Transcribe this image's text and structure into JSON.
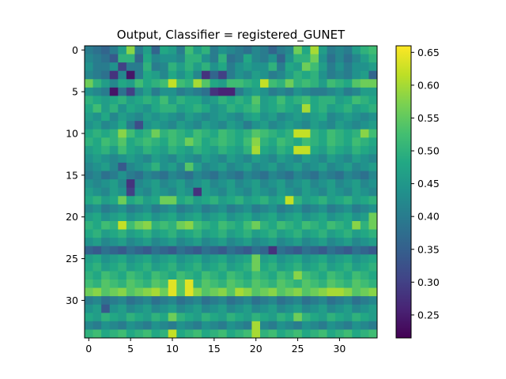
{
  "chart_data": {
    "type": "heatmap",
    "title": "Output, Classifier = registered_GUNET",
    "rows": 35,
    "cols": 35,
    "x_ticks": [
      0,
      5,
      10,
      15,
      20,
      25,
      30
    ],
    "y_ticks": [
      0,
      5,
      10,
      15,
      20,
      25,
      30
    ],
    "colorbar": {
      "colormap": "viridis",
      "vmin": 0.215,
      "vmax": 0.66,
      "ticks": [
        0.25,
        0.3,
        0.35,
        0.4,
        0.45,
        0.5,
        0.55,
        0.6,
        0.65
      ],
      "tick_labels": [
        "0.25",
        "0.30",
        "0.35",
        "0.40",
        "0.45",
        "0.50",
        "0.55",
        "0.60",
        "0.65"
      ]
    },
    "values": [
      [
        0.4,
        0.38,
        0.36,
        0.4,
        0.46,
        0.58,
        0.4,
        0.46,
        0.36,
        0.48,
        0.46,
        0.4,
        0.52,
        0.46,
        0.5,
        0.4,
        0.44,
        0.42,
        0.4,
        0.38,
        0.42,
        0.4,
        0.36,
        0.4,
        0.42,
        0.56,
        0.48,
        0.6,
        0.46,
        0.4,
        0.42,
        0.4,
        0.46,
        0.5,
        0.52
      ],
      [
        0.42,
        0.4,
        0.38,
        0.34,
        0.5,
        0.5,
        0.36,
        0.48,
        0.42,
        0.44,
        0.44,
        0.42,
        0.5,
        0.5,
        0.44,
        0.4,
        0.5,
        0.38,
        0.4,
        0.48,
        0.42,
        0.4,
        0.44,
        0.36,
        0.44,
        0.5,
        0.5,
        0.56,
        0.44,
        0.38,
        0.42,
        0.38,
        0.42,
        0.46,
        0.5
      ],
      [
        0.44,
        0.4,
        0.4,
        0.44,
        0.3,
        0.4,
        0.4,
        0.5,
        0.4,
        0.42,
        0.5,
        0.46,
        0.5,
        0.46,
        0.5,
        0.44,
        0.48,
        0.4,
        0.44,
        0.46,
        0.44,
        0.44,
        0.5,
        0.4,
        0.48,
        0.46,
        0.56,
        0.52,
        0.46,
        0.4,
        0.44,
        0.4,
        0.44,
        0.44,
        0.46
      ],
      [
        0.42,
        0.4,
        0.38,
        0.28,
        0.42,
        0.24,
        0.4,
        0.48,
        0.46,
        0.42,
        0.48,
        0.44,
        0.48,
        0.42,
        0.28,
        0.36,
        0.3,
        0.4,
        0.44,
        0.42,
        0.46,
        0.44,
        0.4,
        0.42,
        0.46,
        0.5,
        0.48,
        0.5,
        0.44,
        0.4,
        0.42,
        0.4,
        0.44,
        0.46,
        0.36
      ],
      [
        0.56,
        0.5,
        0.46,
        0.42,
        0.48,
        0.46,
        0.52,
        0.48,
        0.5,
        0.52,
        0.62,
        0.52,
        0.5,
        0.6,
        0.54,
        0.48,
        0.46,
        0.52,
        0.52,
        0.5,
        0.48,
        0.62,
        0.52,
        0.5,
        0.56,
        0.5,
        0.52,
        0.5,
        0.46,
        0.52,
        0.5,
        0.48,
        0.54,
        0.56,
        0.56
      ],
      [
        0.44,
        0.42,
        0.4,
        0.24,
        0.38,
        0.3,
        0.42,
        0.46,
        0.4,
        0.44,
        0.44,
        0.4,
        0.42,
        0.4,
        0.38,
        0.28,
        0.26,
        0.26,
        0.4,
        0.44,
        0.46,
        0.44,
        0.4,
        0.42,
        0.4,
        0.44,
        0.42,
        0.4,
        0.4,
        0.42,
        0.44,
        0.4,
        0.42,
        0.46,
        0.46
      ],
      [
        0.5,
        0.48,
        0.46,
        0.48,
        0.5,
        0.46,
        0.48,
        0.5,
        0.48,
        0.52,
        0.46,
        0.5,
        0.48,
        0.48,
        0.44,
        0.46,
        0.5,
        0.48,
        0.5,
        0.48,
        0.54,
        0.46,
        0.48,
        0.52,
        0.48,
        0.5,
        0.52,
        0.48,
        0.5,
        0.5,
        0.46,
        0.48,
        0.52,
        0.5,
        0.48
      ],
      [
        0.48,
        0.52,
        0.46,
        0.5,
        0.44,
        0.48,
        0.46,
        0.44,
        0.48,
        0.5,
        0.5,
        0.46,
        0.48,
        0.5,
        0.48,
        0.44,
        0.46,
        0.5,
        0.48,
        0.5,
        0.52,
        0.46,
        0.48,
        0.5,
        0.48,
        0.46,
        0.6,
        0.48,
        0.5,
        0.46,
        0.48,
        0.5,
        0.46,
        0.48,
        0.5
      ],
      [
        0.46,
        0.44,
        0.48,
        0.42,
        0.46,
        0.44,
        0.42,
        0.46,
        0.44,
        0.46,
        0.44,
        0.42,
        0.46,
        0.44,
        0.42,
        0.44,
        0.46,
        0.44,
        0.42,
        0.46,
        0.48,
        0.44,
        0.46,
        0.42,
        0.44,
        0.46,
        0.44,
        0.46,
        0.48,
        0.42,
        0.44,
        0.46,
        0.44,
        0.42,
        0.44
      ],
      [
        0.44,
        0.46,
        0.42,
        0.44,
        0.48,
        0.4,
        0.32,
        0.44,
        0.46,
        0.44,
        0.42,
        0.46,
        0.44,
        0.42,
        0.46,
        0.44,
        0.42,
        0.46,
        0.44,
        0.4,
        0.44,
        0.46,
        0.42,
        0.44,
        0.46,
        0.44,
        0.42,
        0.46,
        0.44,
        0.42,
        0.46,
        0.44,
        0.42,
        0.44,
        0.46
      ],
      [
        0.48,
        0.5,
        0.48,
        0.5,
        0.58,
        0.52,
        0.48,
        0.5,
        0.56,
        0.5,
        0.52,
        0.5,
        0.48,
        0.52,
        0.5,
        0.48,
        0.52,
        0.5,
        0.48,
        0.5,
        0.54,
        0.52,
        0.5,
        0.48,
        0.5,
        0.62,
        0.62,
        0.5,
        0.48,
        0.52,
        0.5,
        0.48,
        0.5,
        0.58,
        0.52
      ],
      [
        0.5,
        0.48,
        0.52,
        0.5,
        0.54,
        0.48,
        0.5,
        0.52,
        0.5,
        0.48,
        0.52,
        0.5,
        0.56,
        0.52,
        0.48,
        0.5,
        0.52,
        0.5,
        0.48,
        0.52,
        0.58,
        0.5,
        0.48,
        0.52,
        0.5,
        0.48,
        0.52,
        0.5,
        0.48,
        0.52,
        0.5,
        0.48,
        0.52,
        0.5,
        0.48
      ],
      [
        0.46,
        0.48,
        0.5,
        0.46,
        0.52,
        0.48,
        0.46,
        0.5,
        0.48,
        0.46,
        0.5,
        0.48,
        0.46,
        0.5,
        0.48,
        0.46,
        0.5,
        0.48,
        0.46,
        0.5,
        0.6,
        0.48,
        0.46,
        0.5,
        0.48,
        0.62,
        0.62,
        0.48,
        0.46,
        0.5,
        0.48,
        0.46,
        0.5,
        0.48,
        0.46
      ],
      [
        0.44,
        0.46,
        0.44,
        0.42,
        0.44,
        0.46,
        0.44,
        0.42,
        0.46,
        0.44,
        0.42,
        0.46,
        0.44,
        0.42,
        0.46,
        0.44,
        0.42,
        0.46,
        0.44,
        0.42,
        0.46,
        0.44,
        0.42,
        0.46,
        0.44,
        0.42,
        0.46,
        0.44,
        0.42,
        0.46,
        0.44,
        0.42,
        0.46,
        0.44,
        0.42
      ],
      [
        0.42,
        0.44,
        0.46,
        0.42,
        0.34,
        0.42,
        0.44,
        0.46,
        0.5,
        0.44,
        0.46,
        0.42,
        0.54,
        0.46,
        0.42,
        0.44,
        0.46,
        0.42,
        0.44,
        0.46,
        0.42,
        0.44,
        0.46,
        0.42,
        0.44,
        0.46,
        0.42,
        0.44,
        0.46,
        0.42,
        0.44,
        0.46,
        0.42,
        0.44,
        0.46
      ],
      [
        0.4,
        0.42,
        0.38,
        0.4,
        0.44,
        0.4,
        0.38,
        0.42,
        0.4,
        0.38,
        0.42,
        0.4,
        0.38,
        0.42,
        0.4,
        0.38,
        0.42,
        0.4,
        0.38,
        0.42,
        0.4,
        0.38,
        0.42,
        0.4,
        0.38,
        0.42,
        0.4,
        0.38,
        0.42,
        0.4,
        0.38,
        0.42,
        0.4,
        0.38,
        0.42
      ],
      [
        0.44,
        0.42,
        0.44,
        0.46,
        0.42,
        0.28,
        0.42,
        0.44,
        0.46,
        0.42,
        0.44,
        0.46,
        0.42,
        0.44,
        0.46,
        0.42,
        0.44,
        0.46,
        0.42,
        0.44,
        0.46,
        0.42,
        0.44,
        0.46,
        0.42,
        0.44,
        0.46,
        0.42,
        0.44,
        0.46,
        0.42,
        0.44,
        0.46,
        0.42,
        0.44
      ],
      [
        0.46,
        0.44,
        0.42,
        0.46,
        0.44,
        0.3,
        0.44,
        0.42,
        0.46,
        0.44,
        0.42,
        0.46,
        0.44,
        0.28,
        0.46,
        0.44,
        0.42,
        0.46,
        0.44,
        0.42,
        0.46,
        0.44,
        0.42,
        0.46,
        0.44,
        0.42,
        0.46,
        0.44,
        0.42,
        0.46,
        0.44,
        0.42,
        0.46,
        0.44,
        0.42
      ],
      [
        0.48,
        0.5,
        0.46,
        0.48,
        0.56,
        0.48,
        0.5,
        0.46,
        0.48,
        0.56,
        0.56,
        0.48,
        0.5,
        0.46,
        0.48,
        0.5,
        0.46,
        0.48,
        0.5,
        0.46,
        0.48,
        0.5,
        0.46,
        0.48,
        0.62,
        0.5,
        0.46,
        0.48,
        0.5,
        0.46,
        0.48,
        0.5,
        0.46,
        0.48,
        0.5
      ],
      [
        0.42,
        0.44,
        0.4,
        0.42,
        0.44,
        0.4,
        0.42,
        0.44,
        0.4,
        0.42,
        0.44,
        0.4,
        0.42,
        0.44,
        0.4,
        0.42,
        0.44,
        0.4,
        0.42,
        0.44,
        0.4,
        0.42,
        0.44,
        0.4,
        0.42,
        0.44,
        0.4,
        0.42,
        0.44,
        0.4,
        0.42,
        0.44,
        0.4,
        0.42,
        0.44
      ],
      [
        0.46,
        0.48,
        0.44,
        0.46,
        0.48,
        0.44,
        0.46,
        0.48,
        0.44,
        0.46,
        0.48,
        0.44,
        0.46,
        0.48,
        0.44,
        0.46,
        0.48,
        0.44,
        0.46,
        0.48,
        0.44,
        0.46,
        0.48,
        0.44,
        0.46,
        0.48,
        0.44,
        0.46,
        0.48,
        0.44,
        0.46,
        0.48,
        0.44,
        0.46,
        0.56
      ],
      [
        0.5,
        0.48,
        0.52,
        0.5,
        0.62,
        0.52,
        0.56,
        0.58,
        0.5,
        0.52,
        0.5,
        0.56,
        0.58,
        0.52,
        0.5,
        0.48,
        0.52,
        0.5,
        0.48,
        0.52,
        0.56,
        0.5,
        0.48,
        0.52,
        0.5,
        0.48,
        0.52,
        0.5,
        0.48,
        0.52,
        0.5,
        0.48,
        0.58,
        0.5,
        0.56
      ],
      [
        0.48,
        0.5,
        0.46,
        0.48,
        0.5,
        0.46,
        0.48,
        0.5,
        0.46,
        0.48,
        0.5,
        0.46,
        0.48,
        0.5,
        0.46,
        0.48,
        0.5,
        0.46,
        0.48,
        0.5,
        0.46,
        0.48,
        0.5,
        0.46,
        0.48,
        0.5,
        0.46,
        0.48,
        0.5,
        0.46,
        0.48,
        0.5,
        0.46,
        0.48,
        0.5
      ],
      [
        0.44,
        0.46,
        0.42,
        0.44,
        0.46,
        0.42,
        0.44,
        0.46,
        0.42,
        0.44,
        0.46,
        0.42,
        0.44,
        0.46,
        0.42,
        0.44,
        0.46,
        0.42,
        0.44,
        0.46,
        0.42,
        0.44,
        0.46,
        0.42,
        0.44,
        0.46,
        0.42,
        0.44,
        0.46,
        0.42,
        0.44,
        0.46,
        0.42,
        0.44,
        0.46
      ],
      [
        0.36,
        0.34,
        0.38,
        0.36,
        0.34,
        0.38,
        0.36,
        0.34,
        0.38,
        0.36,
        0.34,
        0.38,
        0.36,
        0.34,
        0.38,
        0.36,
        0.34,
        0.38,
        0.36,
        0.34,
        0.38,
        0.36,
        0.28,
        0.38,
        0.36,
        0.34,
        0.38,
        0.36,
        0.34,
        0.38,
        0.36,
        0.34,
        0.38,
        0.36,
        0.34
      ],
      [
        0.46,
        0.48,
        0.44,
        0.46,
        0.48,
        0.44,
        0.46,
        0.48,
        0.44,
        0.46,
        0.48,
        0.44,
        0.46,
        0.48,
        0.44,
        0.46,
        0.48,
        0.44,
        0.46,
        0.48,
        0.56,
        0.46,
        0.48,
        0.44,
        0.46,
        0.48,
        0.44,
        0.46,
        0.48,
        0.44,
        0.46,
        0.48,
        0.44,
        0.46,
        0.48
      ],
      [
        0.48,
        0.5,
        0.46,
        0.48,
        0.5,
        0.46,
        0.48,
        0.5,
        0.46,
        0.48,
        0.5,
        0.46,
        0.48,
        0.5,
        0.46,
        0.48,
        0.5,
        0.46,
        0.48,
        0.5,
        0.56,
        0.48,
        0.5,
        0.46,
        0.48,
        0.5,
        0.46,
        0.48,
        0.5,
        0.46,
        0.48,
        0.5,
        0.46,
        0.48,
        0.5
      ],
      [
        0.5,
        0.48,
        0.52,
        0.5,
        0.48,
        0.52,
        0.5,
        0.48,
        0.52,
        0.5,
        0.48,
        0.52,
        0.5,
        0.48,
        0.52,
        0.5,
        0.48,
        0.52,
        0.5,
        0.48,
        0.52,
        0.5,
        0.48,
        0.52,
        0.5,
        0.58,
        0.52,
        0.5,
        0.48,
        0.52,
        0.5,
        0.48,
        0.52,
        0.5,
        0.48
      ],
      [
        0.52,
        0.5,
        0.54,
        0.52,
        0.5,
        0.54,
        0.52,
        0.5,
        0.54,
        0.52,
        0.64,
        0.54,
        0.64,
        0.5,
        0.54,
        0.52,
        0.5,
        0.54,
        0.52,
        0.5,
        0.54,
        0.52,
        0.5,
        0.54,
        0.52,
        0.5,
        0.54,
        0.52,
        0.5,
        0.54,
        0.52,
        0.5,
        0.54,
        0.52,
        0.5
      ],
      [
        0.56,
        0.58,
        0.54,
        0.56,
        0.58,
        0.54,
        0.56,
        0.58,
        0.6,
        0.56,
        0.64,
        0.54,
        0.64,
        0.58,
        0.54,
        0.56,
        0.58,
        0.54,
        0.6,
        0.58,
        0.54,
        0.56,
        0.58,
        0.54,
        0.56,
        0.58,
        0.54,
        0.56,
        0.58,
        0.6,
        0.6,
        0.58,
        0.54,
        0.56,
        0.58
      ],
      [
        0.4,
        0.42,
        0.38,
        0.4,
        0.42,
        0.38,
        0.4,
        0.42,
        0.38,
        0.4,
        0.42,
        0.38,
        0.4,
        0.42,
        0.38,
        0.4,
        0.42,
        0.38,
        0.4,
        0.42,
        0.38,
        0.4,
        0.42,
        0.38,
        0.4,
        0.42,
        0.38,
        0.4,
        0.42,
        0.38,
        0.4,
        0.42,
        0.38,
        0.4,
        0.42
      ],
      [
        0.44,
        0.46,
        0.34,
        0.44,
        0.46,
        0.42,
        0.44,
        0.46,
        0.42,
        0.44,
        0.46,
        0.42,
        0.44,
        0.46,
        0.42,
        0.44,
        0.46,
        0.42,
        0.44,
        0.46,
        0.42,
        0.44,
        0.46,
        0.42,
        0.44,
        0.46,
        0.42,
        0.44,
        0.46,
        0.42,
        0.44,
        0.46,
        0.42,
        0.44,
        0.46
      ],
      [
        0.48,
        0.46,
        0.5,
        0.48,
        0.46,
        0.5,
        0.48,
        0.46,
        0.5,
        0.48,
        0.56,
        0.5,
        0.48,
        0.46,
        0.5,
        0.48,
        0.46,
        0.5,
        0.48,
        0.46,
        0.5,
        0.48,
        0.46,
        0.5,
        0.48,
        0.56,
        0.5,
        0.48,
        0.46,
        0.5,
        0.48,
        0.46,
        0.5,
        0.48,
        0.46
      ],
      [
        0.42,
        0.4,
        0.44,
        0.42,
        0.4,
        0.44,
        0.42,
        0.4,
        0.44,
        0.42,
        0.4,
        0.44,
        0.42,
        0.4,
        0.44,
        0.42,
        0.4,
        0.44,
        0.42,
        0.4,
        0.6,
        0.42,
        0.4,
        0.44,
        0.42,
        0.4,
        0.44,
        0.42,
        0.4,
        0.44,
        0.42,
        0.4,
        0.44,
        0.42,
        0.4
      ],
      [
        0.5,
        0.52,
        0.48,
        0.5,
        0.52,
        0.48,
        0.5,
        0.52,
        0.48,
        0.5,
        0.62,
        0.48,
        0.5,
        0.52,
        0.48,
        0.5,
        0.52,
        0.48,
        0.5,
        0.52,
        0.6,
        0.5,
        0.52,
        0.48,
        0.5,
        0.52,
        0.48,
        0.5,
        0.52,
        0.48,
        0.5,
        0.52,
        0.48,
        0.5,
        0.52
      ]
    ]
  }
}
